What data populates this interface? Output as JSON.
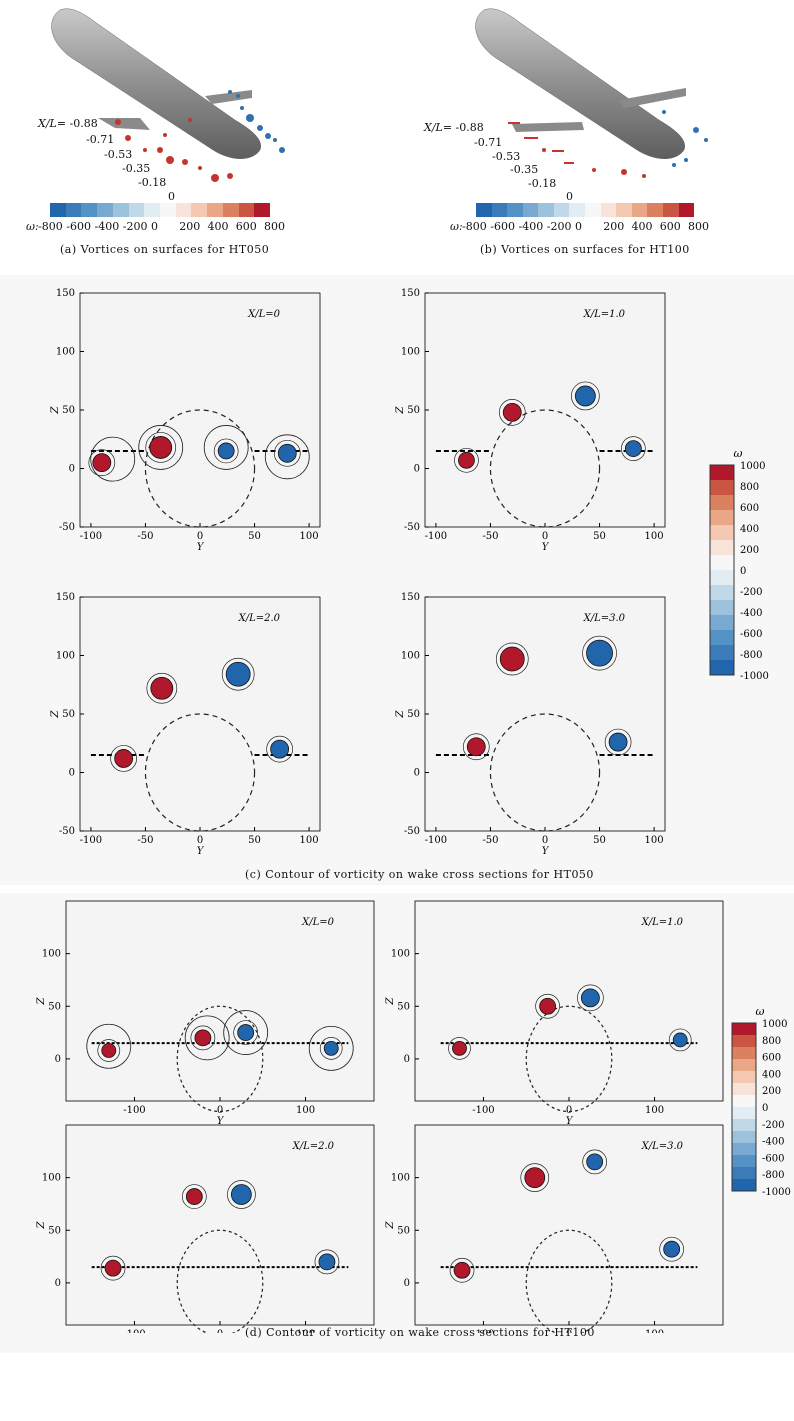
{
  "panel_a": {
    "caption": "(a) Vortices on surfaces for HT050",
    "xl_prefix": "X/L",
    "station_labels": [
      "= -0.88",
      "-0.71",
      "-0.53",
      "-0.35",
      "-0.18",
      "0"
    ],
    "colorbar_symbol": "ω:",
    "colorbar_ticks": [
      "-800",
      "-600",
      "-400",
      "-200",
      "0",
      "200",
      "400",
      "600",
      "800"
    ]
  },
  "panel_b": {
    "caption": "(b) Vortices on surfaces for HT100",
    "xl_prefix": "X/L",
    "station_labels": [
      "= -0.88",
      "-0.71",
      "-0.53",
      "-0.35",
      "-0.18",
      "0"
    ],
    "colorbar_symbol": "ω:",
    "colorbar_ticks": [
      "-800",
      "-600",
      "-400",
      "-200",
      "0",
      "200",
      "400",
      "600",
      "800"
    ]
  },
  "panel_c": {
    "caption": "(c) Contour of vorticity on wake cross sections for HT050",
    "y_label": "Y",
    "z_label": "Z",
    "x_ticks": [
      "-100",
      "-50",
      "0",
      "50",
      "100"
    ],
    "z_ticks": [
      "150",
      "100",
      "50",
      "0",
      "-50"
    ],
    "stations": [
      "X/L=0",
      "X/L=1.0",
      "X/L=2.0",
      "X/L=3.0"
    ],
    "legend_title": "ω",
    "legend_ticks": [
      "1000",
      "800",
      "600",
      "400",
      "200",
      "0",
      "-200",
      "-400",
      "-600",
      "-800",
      "-1000"
    ]
  },
  "panel_d": {
    "caption": "(d) Contour of vorticity on wake cross sections for HT100",
    "y_label": "Y",
    "z_label": "Z",
    "x_ticks": [
      "-100",
      "0",
      "100"
    ],
    "z_ticks": [
      "100",
      "50",
      "0"
    ],
    "stations": [
      "X/L=0",
      "X/L=1.0",
      "X/L=2.0",
      "X/L=3.0"
    ],
    "legend_title": "ω",
    "legend_ticks": [
      "1000",
      "800",
      "600",
      "400",
      "200",
      "0",
      "-200",
      "-400",
      "-600",
      "-800",
      "-1000"
    ]
  },
  "colors": {
    "pos_dark": "#b2182b",
    "neg_dark": "#2166ac",
    "plot_bg": "#f4f4f4",
    "body_gray": "#9a9a9a",
    "colorbar_steps": [
      "#2166ac",
      "#3b7bb8",
      "#5491c4",
      "#79a9d0",
      "#9dc2dc",
      "#c1d8e8",
      "#e2ecf3",
      "#f7f7f7",
      "#f7e3da",
      "#f4c8b1",
      "#eaa787",
      "#dc8160",
      "#c95542",
      "#b2182b"
    ]
  }
}
